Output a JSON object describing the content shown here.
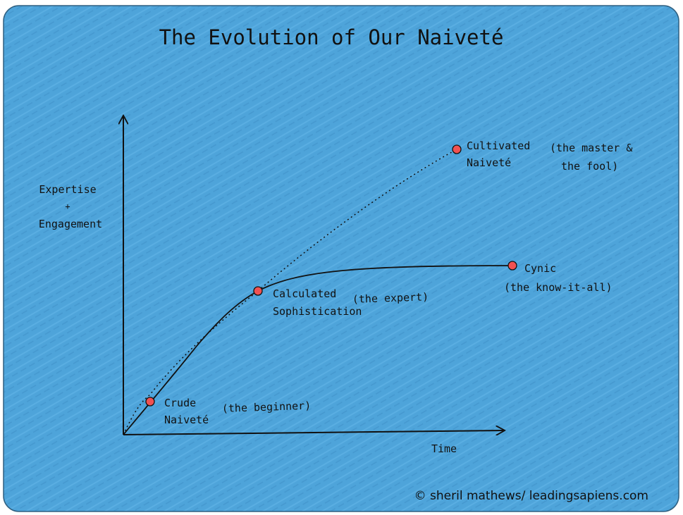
{
  "title": "The Evolution of Our Naiveté",
  "axes": {
    "y_label": [
      "Expertise",
      "+",
      "Engagement"
    ],
    "x_label": "Time"
  },
  "nodes": [
    {
      "label": [
        "Crude",
        "Naiveté"
      ],
      "note": [
        "(the beginner)"
      ]
    },
    {
      "label": [
        "Calculated",
        "Sophistication"
      ],
      "note": [
        "(the expert)"
      ]
    },
    {
      "label": [
        "Cultivated",
        "Naiveté"
      ],
      "note": [
        "(the master &",
        "the fool)"
      ]
    },
    {
      "label": [
        "Cynic"
      ],
      "note": [
        "(the know-it-all)"
      ]
    }
  ],
  "credit": "© sheril mathews/ leadingsapiens.com"
}
